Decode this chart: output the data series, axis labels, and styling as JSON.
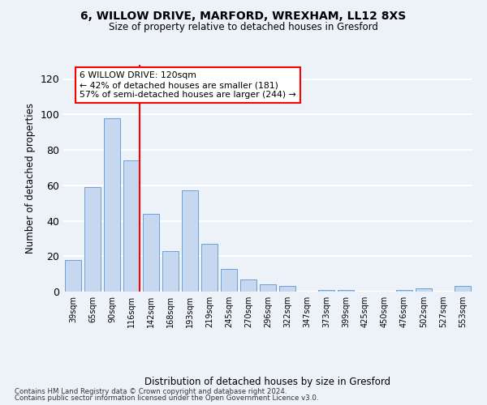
{
  "title1": "6, WILLOW DRIVE, MARFORD, WREXHAM, LL12 8XS",
  "title2": "Size of property relative to detached houses in Gresford",
  "xlabel": "Distribution of detached houses by size in Gresford",
  "ylabel": "Number of detached properties",
  "categories": [
    "39sqm",
    "65sqm",
    "90sqm",
    "116sqm",
    "142sqm",
    "168sqm",
    "193sqm",
    "219sqm",
    "245sqm",
    "270sqm",
    "296sqm",
    "322sqm",
    "347sqm",
    "373sqm",
    "399sqm",
    "425sqm",
    "450sqm",
    "476sqm",
    "502sqm",
    "527sqm",
    "553sqm"
  ],
  "values": [
    18,
    59,
    98,
    74,
    44,
    23,
    57,
    27,
    13,
    7,
    4,
    3,
    0,
    1,
    1,
    0,
    0,
    1,
    2,
    0,
    3
  ],
  "bar_color": "#c5d8f0",
  "bar_edge_color": "#6a9fd8",
  "vline_color": "red",
  "vline_x_index": 3,
  "annotation_text": "6 WILLOW DRIVE: 120sqm\n← 42% of detached houses are smaller (181)\n57% of semi-detached houses are larger (244) →",
  "annotation_box_color": "white",
  "annotation_box_edge_color": "red",
  "ylim": [
    0,
    128
  ],
  "yticks": [
    0,
    20,
    40,
    60,
    80,
    100,
    120
  ],
  "footer1": "Contains HM Land Registry data © Crown copyright and database right 2024.",
  "footer2": "Contains public sector information licensed under the Open Government Licence v3.0.",
  "bg_color": "#edf2f9",
  "grid_color": "white"
}
